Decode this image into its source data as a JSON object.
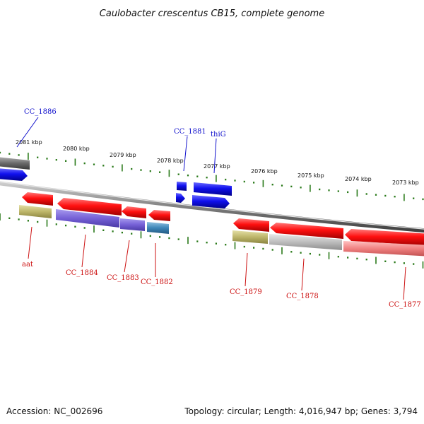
{
  "title": "Caulobacter crescentus CB15, complete genome",
  "footer": {
    "accession": "Accession: NC_002696",
    "summary": "Topology: circular; Length: 4,016,947 bp; Genes: 3,794"
  },
  "ruler": {
    "labels": [
      "2081 kbp",
      "2080 kbp",
      "2079 kbp",
      "2078 kbp",
      "2077 kbp",
      "2076 kbp",
      "2075 kbp",
      "2074 kbp",
      "2073 kbp"
    ]
  },
  "colors": {
    "tick": "#2a7a1a",
    "backbone": "#777777",
    "label_blue": "#1010cc",
    "label_red": "#cc1010",
    "forward_gene": "#1a1aee",
    "reverse_gene": "#ee1111"
  },
  "top_labels": [
    {
      "text": "CC_1886"
    },
    {
      "text": "CC_1881"
    },
    {
      "text": "thiG"
    }
  ],
  "bottom_labels": [
    {
      "text": "aat"
    },
    {
      "text": "CC_1884"
    },
    {
      "text": "CC_1883"
    },
    {
      "text": "CC_1882"
    },
    {
      "text": "CC_1879"
    },
    {
      "text": "CC_1878"
    },
    {
      "text": "CC_1877"
    }
  ]
}
